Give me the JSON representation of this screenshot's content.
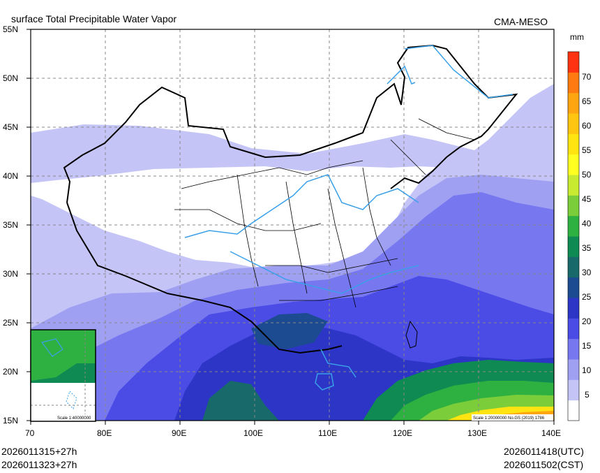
{
  "header": {
    "title": "surface Total Precipitable Water Vapor",
    "model": "CMA-MESO"
  },
  "axes": {
    "lat_labels": [
      "55N",
      "50N",
      "45N",
      "40N",
      "35N",
      "30N",
      "25N",
      "20N",
      "15N"
    ],
    "lon_labels": [
      "70",
      "80E",
      "90E",
      "100E",
      "110E",
      "120E",
      "130E",
      "140E"
    ]
  },
  "colorbar": {
    "unit": "mm",
    "labels": [
      "70",
      "65",
      "60",
      "55",
      "50",
      "45",
      "40",
      "35",
      "30",
      "25",
      "20",
      "15",
      "10",
      "5"
    ],
    "colors": [
      "#ff3311",
      "#ff7a11",
      "#ffa511",
      "#ffc511",
      "#ffe411",
      "#ffff22",
      "#c8eb32",
      "#7ccd3a",
      "#2fb141",
      "#0e8a52",
      "#186a6a",
      "#1d4b92",
      "#2c35c6",
      "#4b4be6",
      "#7777f0",
      "#a0a0f3",
      "#c4c4f7",
      "#ffffff"
    ]
  },
  "inset": {
    "scale": "Scale 1:40000000"
  },
  "map": {
    "scale_note": "Scale 1:20000000 No.GS (2019) 1786"
  },
  "footer": {
    "init_utc": "2026011315+27h",
    "init_cst": "2026011323+27h",
    "valid_utc": "2026011418(UTC)",
    "valid_cst": "2026011502(CST)"
  }
}
